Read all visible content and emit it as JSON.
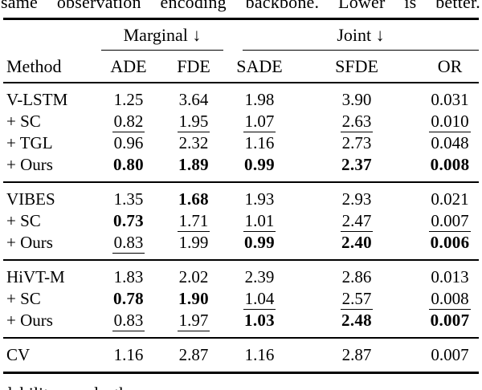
{
  "caption_top": "same observation encoding backbone. Lower is better.",
  "caption_bottom": "dability and the",
  "table": {
    "header": {
      "method": "Method",
      "marginal_label": "Marginal ↓",
      "joint_label": "Joint ↓",
      "cols": [
        "ADE",
        "FDE",
        "SADE",
        "SFDE",
        "OR"
      ]
    },
    "style_legend": {
      "n": "normal",
      "u": "underline (second best)",
      "b": "bold (best)"
    },
    "groups": [
      {
        "rows": [
          {
            "method": "V-LSTM",
            "cells": [
              {
                "v": "1.25",
                "s": "n"
              },
              {
                "v": "3.64",
                "s": "n"
              },
              {
                "v": "1.98",
                "s": "n"
              },
              {
                "v": "3.90",
                "s": "n"
              },
              {
                "v": "0.031",
                "s": "n"
              }
            ]
          },
          {
            "method": "+ SC",
            "cells": [
              {
                "v": "0.82",
                "s": "u"
              },
              {
                "v": "1.95",
                "s": "u"
              },
              {
                "v": "1.07",
                "s": "u"
              },
              {
                "v": "2.63",
                "s": "u"
              },
              {
                "v": "0.010",
                "s": "u"
              }
            ]
          },
          {
            "method": "+ TGL",
            "cells": [
              {
                "v": "0.96",
                "s": "n"
              },
              {
                "v": "2.32",
                "s": "n"
              },
              {
                "v": "1.16",
                "s": "n"
              },
              {
                "v": "2.73",
                "s": "n"
              },
              {
                "v": "0.048",
                "s": "n"
              }
            ]
          },
          {
            "method": "+ Ours",
            "cells": [
              {
                "v": "0.80",
                "s": "b"
              },
              {
                "v": "1.89",
                "s": "b"
              },
              {
                "v": "0.99",
                "s": "b"
              },
              {
                "v": "2.37",
                "s": "b"
              },
              {
                "v": "0.008",
                "s": "b"
              }
            ]
          }
        ]
      },
      {
        "rows": [
          {
            "method": "VIBES",
            "cells": [
              {
                "v": "1.35",
                "s": "n"
              },
              {
                "v": "1.68",
                "s": "b"
              },
              {
                "v": "1.93",
                "s": "n"
              },
              {
                "v": "2.93",
                "s": "n"
              },
              {
                "v": "0.021",
                "s": "n"
              }
            ]
          },
          {
            "method": "+ SC",
            "cells": [
              {
                "v": "0.73",
                "s": "b"
              },
              {
                "v": "1.71",
                "s": "u"
              },
              {
                "v": "1.01",
                "s": "u"
              },
              {
                "v": "2.47",
                "s": "u"
              },
              {
                "v": "0.007",
                "s": "u"
              }
            ]
          },
          {
            "method": "+ Ours",
            "cells": [
              {
                "v": "0.83",
                "s": "u"
              },
              {
                "v": "1.99",
                "s": "n"
              },
              {
                "v": "0.99",
                "s": "b"
              },
              {
                "v": "2.40",
                "s": "b"
              },
              {
                "v": "0.006",
                "s": "b"
              }
            ]
          }
        ]
      },
      {
        "rows": [
          {
            "method": "HiVT-M",
            "cells": [
              {
                "v": "1.83",
                "s": "n"
              },
              {
                "v": "2.02",
                "s": "n"
              },
              {
                "v": "2.39",
                "s": "n"
              },
              {
                "v": "2.86",
                "s": "n"
              },
              {
                "v": "0.013",
                "s": "n"
              }
            ]
          },
          {
            "method": "+ SC",
            "cells": [
              {
                "v": "0.78",
                "s": "b"
              },
              {
                "v": "1.90",
                "s": "b"
              },
              {
                "v": "1.04",
                "s": "u"
              },
              {
                "v": "2.57",
                "s": "u"
              },
              {
                "v": "0.008",
                "s": "u"
              }
            ]
          },
          {
            "method": "+ Ours",
            "cells": [
              {
                "v": "0.83",
                "s": "u"
              },
              {
                "v": "1.97",
                "s": "u"
              },
              {
                "v": "1.03",
                "s": "b"
              },
              {
                "v": "2.48",
                "s": "b"
              },
              {
                "v": "0.007",
                "s": "b"
              }
            ]
          }
        ]
      },
      {
        "rows": [
          {
            "method": "CV",
            "cells": [
              {
                "v": "1.16",
                "s": "n"
              },
              {
                "v": "2.87",
                "s": "n"
              },
              {
                "v": "1.16",
                "s": "n"
              },
              {
                "v": "2.87",
                "s": "n"
              },
              {
                "v": "0.007",
                "s": "n"
              }
            ]
          }
        ]
      }
    ]
  }
}
